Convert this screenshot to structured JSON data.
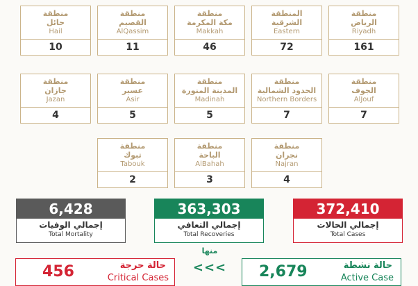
{
  "regions_row1": [
    {
      "ar1": "منطقة",
      "ar2": "الرياض",
      "en": "Riyadh",
      "count": "161"
    },
    {
      "ar1": "المنطقة",
      "ar2": "الشرقية",
      "en": "Eastern",
      "count": "72"
    },
    {
      "ar1": "منطقة",
      "ar2": "مكة المكرمة",
      "en": "Makkah",
      "count": "46"
    },
    {
      "ar1": "منطقة",
      "ar2": "القصيم",
      "en": "AlQassim",
      "count": "11"
    },
    {
      "ar1": "منطقة",
      "ar2": "حائل",
      "en": "Hail",
      "count": "10"
    }
  ],
  "regions_row2": [
    {
      "ar1": "منطقة",
      "ar2": "الجوف",
      "en": "AlJouf",
      "count": "7"
    },
    {
      "ar1": "منطقة",
      "ar2": "الحدود الشمالية",
      "en": "Northern Borders",
      "count": "7"
    },
    {
      "ar1": "منطقة",
      "ar2": "المدينة المنورة",
      "en": "Madinah",
      "count": "5"
    },
    {
      "ar1": "منطقة",
      "ar2": "عسير",
      "en": "Asir",
      "count": "5"
    },
    {
      "ar1": "منطقة",
      "ar2": "جازان",
      "en": "Jazan",
      "count": "4"
    }
  ],
  "regions_row3": [
    {
      "ar1": "منطقة",
      "ar2": "نجران",
      "en": "Najran",
      "count": "4"
    },
    {
      "ar1": "منطقة",
      "ar2": "الباحة",
      "en": "AlBahah",
      "count": "3"
    },
    {
      "ar1": "منطقة",
      "ar2": "تبوك",
      "en": "Tabouk",
      "count": "2"
    }
  ],
  "totals": {
    "mortality": {
      "value": "6,428",
      "ar": "إجمالي الوفيات",
      "en": "Total Mortality",
      "color": "#5a5a5a"
    },
    "recoveries": {
      "value": "363,303",
      "ar": "إجمالي التعافي",
      "en": "Total Recoveries",
      "color": "#18855a"
    },
    "cases": {
      "value": "372,410",
      "ar": "إجمالي الحالات",
      "en": "Total Cases",
      "color": "#d42434"
    }
  },
  "critical": {
    "value": "456",
    "ar": "حالة حرجة",
    "en": "Critical Cases",
    "color": "#d42434"
  },
  "active": {
    "value": "2,679",
    "ar": "حالة نشطة",
    "en": "Active Case",
    "color": "#18855a"
  },
  "of_which": {
    "label": "منها",
    "arrows": "<<<"
  }
}
